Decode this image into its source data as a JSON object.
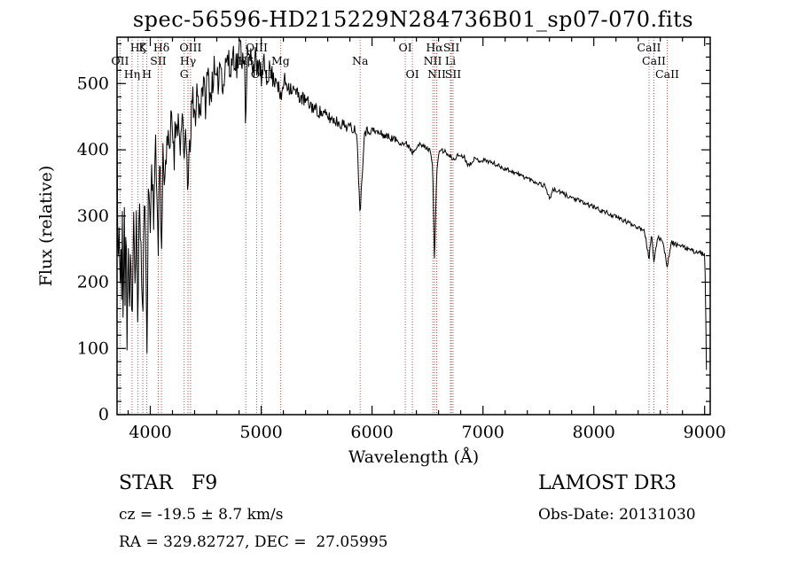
{
  "chart_data": {
    "type": "line",
    "title": "spec-56596-HD215229N284736B01_sp07-070.fits",
    "xlabel": "Wavelength (Å)",
    "ylabel": "Flux (relative)",
    "xlim": [
      3700,
      9050
    ],
    "ylim": [
      0,
      570
    ],
    "xticks": [
      4000,
      5000,
      6000,
      7000,
      8000,
      9000
    ],
    "yticks": [
      0,
      100,
      200,
      300,
      400,
      500
    ],
    "x_minor_step": 200,
    "y_minor_step": 20,
    "grid": false,
    "legend": "none",
    "line_color": "#000000",
    "spectral_line_color": "#aa5555",
    "background": "#ffffff",
    "noise": {
      "seed": 11,
      "blue_amp": 34,
      "red_amp": 3.5
    },
    "spectral_lines": [
      {
        "wavelength": 3727,
        "label": "OII",
        "row": 1
      },
      {
        "wavelength": 3835,
        "label": "Hη",
        "row": 2
      },
      {
        "wavelength": 3889,
        "label": "Hζ",
        "row": 0
      },
      {
        "wavelength": 3933,
        "label": "K",
        "row": 0
      },
      {
        "wavelength": 3969,
        "label": "H",
        "row": 2
      },
      {
        "wavelength": 4072,
        "label": "SII",
        "row": 1
      },
      {
        "wavelength": 4101,
        "label": "Hδ",
        "row": 0
      },
      {
        "wavelength": 4305,
        "label": "G",
        "row": 2
      },
      {
        "wavelength": 4340,
        "label": "Hγ",
        "row": 1
      },
      {
        "wavelength": 4363,
        "label": "OIII",
        "row": 0
      },
      {
        "wavelength": 4861,
        "label": "Hβ",
        "row": 1
      },
      {
        "wavelength": 4959,
        "label": "OIII",
        "row": 0
      },
      {
        "wavelength": 5007,
        "label": "OIII",
        "row": 2
      },
      {
        "wavelength": 5175,
        "label": "Mg",
        "row": 1
      },
      {
        "wavelength": 5893,
        "label": "Na",
        "row": 1
      },
      {
        "wavelength": 6300,
        "label": "OI",
        "row": 0
      },
      {
        "wavelength": 6364,
        "label": "OI",
        "row": 2
      },
      {
        "wavelength": 6548,
        "label": "NII",
        "row": 1
      },
      {
        "wavelength": 6563,
        "label": "Hα",
        "row": 0
      },
      {
        "wavelength": 6583,
        "label": "NII",
        "row": 2
      },
      {
        "wavelength": 6707,
        "label": "Li",
        "row": 1
      },
      {
        "wavelength": 6716,
        "label": "SII",
        "row": 0
      },
      {
        "wavelength": 6731,
        "label": "SII",
        "row": 2
      },
      {
        "wavelength": 8498,
        "label": "CaII",
        "row": 0
      },
      {
        "wavelength": 8542,
        "label": "CaII",
        "row": 1
      },
      {
        "wavelength": 8662,
        "label": "CaII",
        "row": 2
      }
    ],
    "spectrum_anchors": [
      [
        3700,
        470
      ],
      [
        3704,
        160
      ],
      [
        3709,
        420
      ],
      [
        3714,
        110
      ],
      [
        3720,
        360
      ],
      [
        3727,
        95
      ],
      [
        3734,
        330
      ],
      [
        3741,
        150
      ],
      [
        3748,
        300
      ],
      [
        3756,
        100
      ],
      [
        3764,
        330
      ],
      [
        3772,
        170
      ],
      [
        3781,
        300
      ],
      [
        3790,
        120
      ],
      [
        3800,
        290
      ],
      [
        3812,
        150
      ],
      [
        3824,
        280
      ],
      [
        3835,
        105
      ],
      [
        3848,
        300
      ],
      [
        3862,
        180
      ],
      [
        3876,
        320
      ],
      [
        3889,
        125
      ],
      [
        3903,
        340
      ],
      [
        3918,
        230
      ],
      [
        3933,
        135
      ],
      [
        3946,
        340
      ],
      [
        3958,
        240
      ],
      [
        3970,
        125
      ],
      [
        3984,
        350
      ],
      [
        4000,
        290
      ],
      [
        4015,
        380
      ],
      [
        4030,
        310
      ],
      [
        4046,
        400
      ],
      [
        4060,
        330
      ],
      [
        4072,
        270
      ],
      [
        4086,
        400
      ],
      [
        4101,
        235
      ],
      [
        4116,
        410
      ],
      [
        4132,
        350
      ],
      [
        4150,
        430
      ],
      [
        4170,
        380
      ],
      [
        4192,
        450
      ],
      [
        4215,
        400
      ],
      [
        4240,
        460
      ],
      [
        4265,
        415
      ],
      [
        4290,
        430
      ],
      [
        4305,
        375
      ],
      [
        4322,
        450
      ],
      [
        4340,
        295
      ],
      [
        4356,
        460
      ],
      [
        4363,
        390
      ],
      [
        4378,
        480
      ],
      [
        4398,
        440
      ],
      [
        4420,
        490
      ],
      [
        4445,
        455
      ],
      [
        4470,
        505
      ],
      [
        4495,
        470
      ],
      [
        4520,
        515
      ],
      [
        4545,
        480
      ],
      [
        4570,
        520
      ],
      [
        4600,
        490
      ],
      [
        4630,
        535
      ],
      [
        4660,
        500
      ],
      [
        4690,
        545
      ],
      [
        4720,
        515
      ],
      [
        4750,
        550
      ],
      [
        4780,
        525
      ],
      [
        4810,
        555
      ],
      [
        4835,
        535
      ],
      [
        4850,
        557
      ],
      [
        4861,
        420
      ],
      [
        4875,
        548
      ],
      [
        4890,
        532
      ],
      [
        4910,
        545
      ],
      [
        4930,
        525
      ],
      [
        4950,
        538
      ],
      [
        4959,
        510
      ],
      [
        4975,
        535
      ],
      [
        4990,
        520
      ],
      [
        5007,
        505
      ],
      [
        5025,
        528
      ],
      [
        5050,
        512
      ],
      [
        5080,
        522
      ],
      [
        5110,
        506
      ],
      [
        5140,
        512
      ],
      [
        5175,
        472
      ],
      [
        5205,
        505
      ],
      [
        5260,
        495
      ],
      [
        5320,
        485
      ],
      [
        5380,
        476
      ],
      [
        5440,
        468
      ],
      [
        5500,
        460
      ],
      [
        5560,
        454
      ],
      [
        5620,
        448
      ],
      [
        5680,
        443
      ],
      [
        5740,
        438
      ],
      [
        5800,
        434
      ],
      [
        5860,
        430
      ],
      [
        5893,
        305
      ],
      [
        5930,
        427
      ],
      [
        5990,
        430
      ],
      [
        6050,
        426
      ],
      [
        6110,
        422
      ],
      [
        6170,
        418
      ],
      [
        6230,
        414
      ],
      [
        6290,
        409
      ],
      [
        6330,
        407
      ],
      [
        6364,
        396
      ],
      [
        6410,
        408
      ],
      [
        6470,
        405
      ],
      [
        6530,
        398
      ],
      [
        6548,
        372
      ],
      [
        6563,
        225
      ],
      [
        6582,
        360
      ],
      [
        6605,
        400
      ],
      [
        6660,
        397
      ],
      [
        6707,
        388
      ],
      [
        6716,
        390
      ],
      [
        6731,
        384
      ],
      [
        6775,
        392
      ],
      [
        6830,
        390
      ],
      [
        6870,
        376
      ],
      [
        6915,
        386
      ],
      [
        6970,
        384
      ],
      [
        7030,
        384
      ],
      [
        7090,
        380
      ],
      [
        7150,
        375
      ],
      [
        7210,
        371
      ],
      [
        7270,
        367
      ],
      [
        7330,
        362
      ],
      [
        7390,
        358
      ],
      [
        7450,
        353
      ],
      [
        7510,
        349
      ],
      [
        7565,
        345
      ],
      [
        7600,
        326
      ],
      [
        7635,
        340
      ],
      [
        7695,
        336
      ],
      [
        7755,
        331
      ],
      [
        7815,
        327
      ],
      [
        7875,
        322
      ],
      [
        7935,
        318
      ],
      [
        7995,
        314
      ],
      [
        8055,
        309
      ],
      [
        8115,
        305
      ],
      [
        8175,
        300
      ],
      [
        8235,
        296
      ],
      [
        8295,
        291
      ],
      [
        8355,
        287
      ],
      [
        8415,
        282
      ],
      [
        8455,
        280
      ],
      [
        8498,
        235
      ],
      [
        8520,
        274
      ],
      [
        8542,
        228
      ],
      [
        8575,
        268
      ],
      [
        8620,
        264
      ],
      [
        8662,
        224
      ],
      [
        8700,
        260
      ],
      [
        8760,
        256
      ],
      [
        8820,
        252
      ],
      [
        8880,
        248
      ],
      [
        8940,
        245
      ],
      [
        9000,
        242
      ],
      [
        9006,
        200
      ],
      [
        9012,
        115
      ],
      [
        9018,
        40
      ]
    ]
  },
  "footer": {
    "class_label": "STAR   F9",
    "survey": "LAMOST DR3",
    "cz": "cz = -19.5 ± 8.7 km/s",
    "obs_date": "Obs-Date: 20131030",
    "ra_dec": "RA = 329.82727, DEC =  27.05995"
  }
}
